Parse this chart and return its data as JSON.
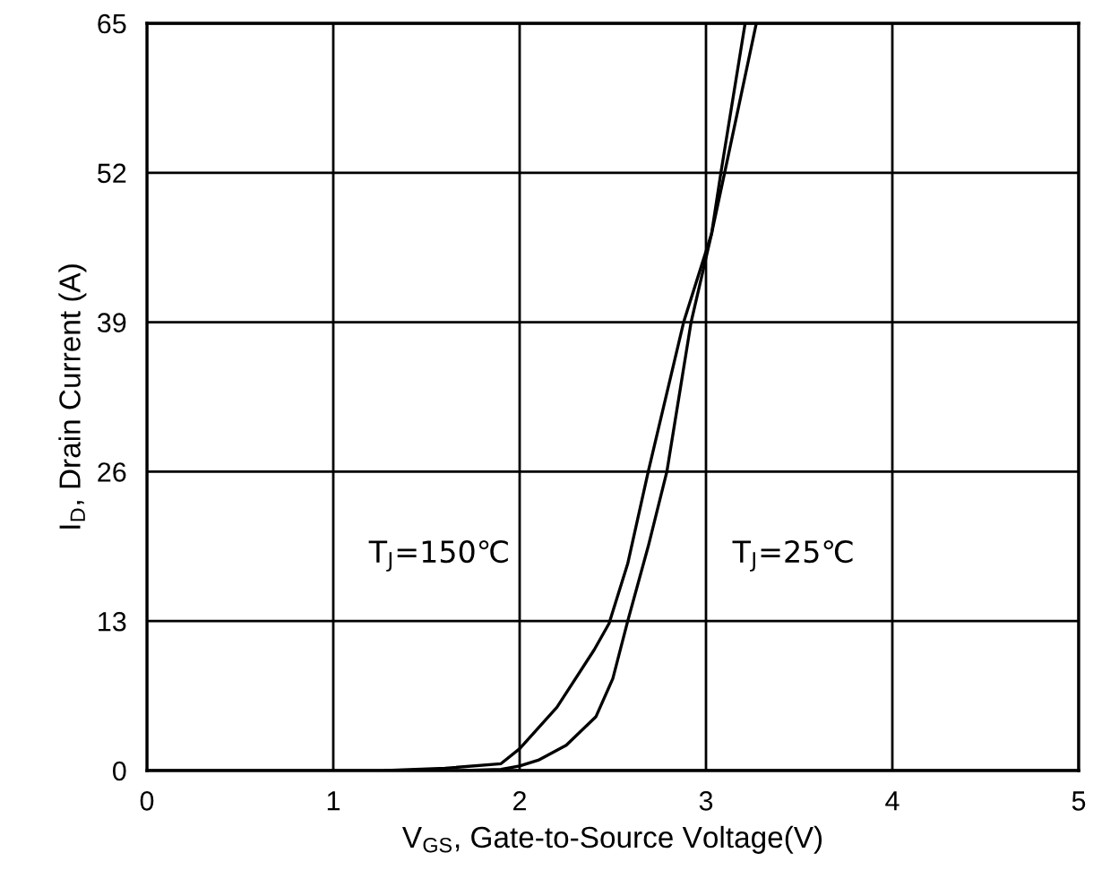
{
  "chart_data": {
    "type": "line",
    "xlabel": "V$_{GS}$, Gate-to-Source Voltage(V)",
    "ylabel": "I$_{D}$, Drain Current (A)",
    "xlim": [
      0,
      5
    ],
    "xticks": [
      0,
      1,
      2,
      3,
      4,
      5
    ],
    "ylim": [
      0,
      65
    ],
    "yticks": [
      0,
      13,
      26,
      39,
      52,
      65
    ],
    "grid": true,
    "marker": "none",
    "line_style": "solid",
    "series": [
      {
        "color": "#000000",
        "x": [
          1.28,
          1.6,
          1.9,
          2.0,
          2.2,
          2.4,
          2.48,
          2.58,
          2.69,
          2.88,
          3.03,
          3.1,
          3.27
        ],
        "values": [
          0,
          0.2,
          0.6,
          1.9,
          5.5,
          10.5,
          12.8,
          18,
          26,
          39,
          46.7,
          52,
          65
        ]
      },
      {
        "color": "#000000",
        "x": [
          1.7,
          1.9,
          2.0,
          2.1,
          2.25,
          2.41,
          2.5,
          2.58,
          2.69,
          2.79,
          2.92,
          3.03,
          3.08,
          3.21
        ],
        "values": [
          0,
          0.1,
          0.4,
          0.9,
          2.2,
          4.7,
          8,
          13,
          19.5,
          26,
          39,
          46.7,
          52,
          65
        ]
      }
    ],
    "annotations": [
      "T$_{J}$=150℃",
      "T$_{J}$=25℃"
    ]
  }
}
